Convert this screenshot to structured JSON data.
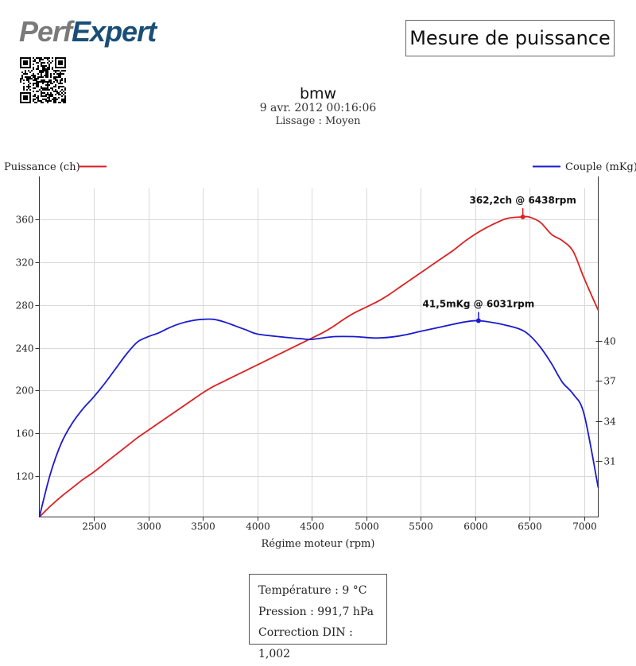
{
  "brand": {
    "logo_text": "PerfExpert"
  },
  "header": {
    "title": "Mesure de puissance",
    "model": "bmw",
    "date": "9 avr. 2012 00:16:06",
    "smoothing": "Lissage : Moyen"
  },
  "conditions": {
    "temperature": "Température : 9 °C",
    "pressure": "Pression : 991,7 hPa",
    "din_correction": "Correction DIN : 1,002"
  },
  "chart_data": {
    "type": "line",
    "xlabel": "Régime moteur (rpm)",
    "xlim": [
      2000,
      7130
    ],
    "x_ticks": [
      2500,
      3000,
      3500,
      4000,
      4500,
      5000,
      5500,
      6000,
      6500,
      7000
    ],
    "grid": true,
    "series": [
      {
        "name": "Puissance (ch)",
        "axis": "left",
        "color": "#dd2020",
        "ylim": [
          82,
          400
        ],
        "y_ticks": [
          120,
          160,
          200,
          240,
          280,
          320,
          360
        ],
        "x": [
          2000,
          2100,
          2200,
          2300,
          2400,
          2500,
          2600,
          2700,
          2800,
          2900,
          3000,
          3100,
          3200,
          3300,
          3400,
          3500,
          3600,
          3700,
          3800,
          3900,
          4000,
          4100,
          4200,
          4300,
          4400,
          4500,
          4600,
          4700,
          4800,
          4900,
          5000,
          5100,
          5200,
          5300,
          5400,
          5500,
          5600,
          5700,
          5800,
          5900,
          6000,
          6100,
          6200,
          6300,
          6438,
          6500,
          6600,
          6700,
          6800,
          6900,
          7000,
          7130
        ],
        "values": [
          82,
          92,
          101,
          109,
          117,
          124,
          132,
          140,
          148,
          156,
          163,
          170,
          177,
          184,
          191,
          198,
          204,
          209,
          214,
          219,
          224,
          229,
          234,
          239,
          244,
          249,
          254,
          260,
          267,
          273,
          278,
          283,
          289,
          296,
          303,
          310,
          317,
          324,
          331,
          339,
          346,
          352,
          357,
          361,
          362.2,
          362,
          357,
          346,
          340,
          330,
          305,
          275
        ],
        "peak_label": "362,2ch @ 6438rpm",
        "peak": {
          "x": 6438,
          "y": 362.2
        }
      },
      {
        "name": "Couple (mKg)",
        "axis": "right",
        "color": "#1a1ad0",
        "ylim": [
          26.8,
          52.3
        ],
        "y_ticks": [
          31,
          34,
          37,
          40
        ],
        "x": [
          2000,
          2100,
          2200,
          2300,
          2400,
          2500,
          2600,
          2700,
          2800,
          2900,
          3000,
          3100,
          3200,
          3300,
          3400,
          3500,
          3600,
          3700,
          3800,
          3900,
          4000,
          4200,
          4400,
          4500,
          4700,
          4900,
          5100,
          5300,
          5500,
          5700,
          5900,
          6031,
          6200,
          6400,
          6500,
          6600,
          6700,
          6800,
          6900,
          7000,
          7130
        ],
        "values": [
          26.8,
          30,
          32.3,
          33.8,
          34.9,
          35.8,
          36.8,
          37.9,
          39,
          39.9,
          40.3,
          40.6,
          41,
          41.3,
          41.5,
          41.6,
          41.6,
          41.4,
          41.1,
          40.8,
          40.5,
          40.3,
          40.15,
          40.1,
          40.3,
          40.3,
          40.2,
          40.35,
          40.7,
          41.05,
          41.4,
          41.5,
          41.3,
          40.9,
          40.4,
          39.5,
          38.3,
          36.9,
          36,
          34.5,
          29
        ],
        "peak_label": "41,5mKg @ 6031rpm",
        "peak": {
          "x": 6031,
          "y": 41.5
        }
      }
    ]
  }
}
